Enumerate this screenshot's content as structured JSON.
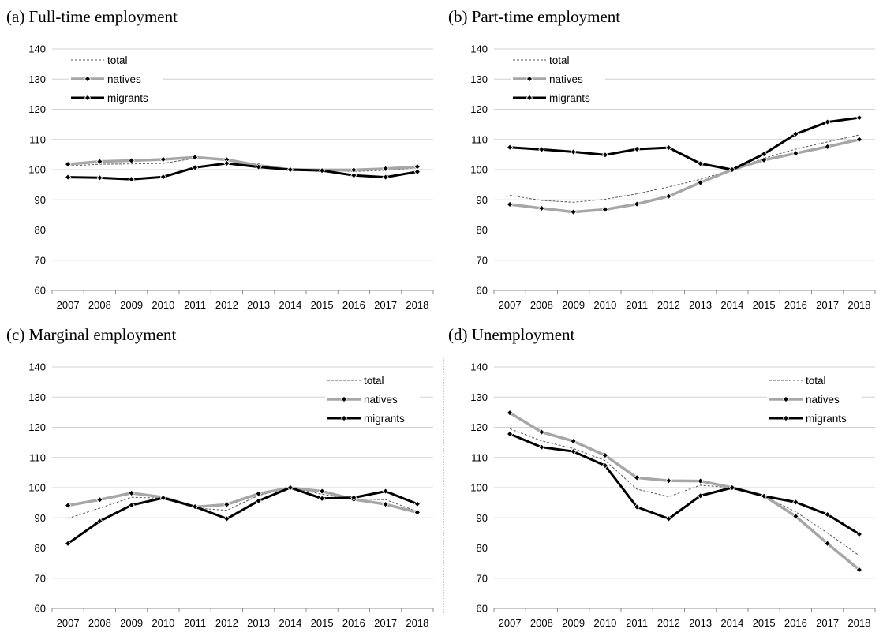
{
  "chart_data": [
    {
      "type": "line",
      "title": "(a)  Full-time employment",
      "x": [
        "2007",
        "2008",
        "2009",
        "2010",
        "2011",
        "2012",
        "2013",
        "2014",
        "2015",
        "2016",
        "2017",
        "2018"
      ],
      "ylim": [
        60,
        140
      ],
      "yticks": [
        60,
        70,
        80,
        90,
        100,
        110,
        120,
        130,
        140
      ],
      "grid": true,
      "legend_position": "top-left",
      "series": [
        {
          "name": "total",
          "style": "dashed",
          "color": "#555555",
          "values": [
            101.2,
            101.8,
            101.9,
            102.1,
            103.8,
            103.0,
            101.3,
            100.0,
            99.8,
            99.4,
            99.8,
            100.6
          ]
        },
        {
          "name": "natives",
          "style": "thick-gray",
          "color": "#a6a6a6",
          "values": [
            101.8,
            102.7,
            103.0,
            103.4,
            104.1,
            103.3,
            101.4,
            100.0,
            99.9,
            99.9,
            100.3,
            101.0
          ]
        },
        {
          "name": "migrants",
          "style": "thick-black",
          "color": "#000000",
          "values": [
            97.5,
            97.3,
            96.8,
            97.6,
            100.7,
            102.1,
            100.9,
            100.0,
            99.7,
            98.1,
            97.5,
            99.3
          ]
        }
      ]
    },
    {
      "type": "line",
      "title": "(b)  Part-time employment",
      "x": [
        "2007",
        "2008",
        "2009",
        "2010",
        "2011",
        "2012",
        "2013",
        "2014",
        "2015",
        "2016",
        "2017",
        "2018"
      ],
      "ylim": [
        60,
        140
      ],
      "yticks": [
        60,
        70,
        80,
        90,
        100,
        110,
        120,
        130,
        140
      ],
      "grid": true,
      "legend_position": "top-left",
      "series": [
        {
          "name": "total",
          "style": "dashed",
          "color": "#555555",
          "values": [
            91.5,
            89.8,
            89.2,
            90.2,
            92.0,
            94.3,
            96.8,
            100.0,
            103.8,
            106.8,
            109.2,
            111.5
          ]
        },
        {
          "name": "natives",
          "style": "thick-gray",
          "color": "#a6a6a6",
          "values": [
            88.5,
            87.2,
            86.0,
            86.8,
            88.6,
            91.2,
            95.7,
            100.0,
            103.2,
            105.4,
            107.6,
            110.0
          ]
        },
        {
          "name": "migrants",
          "style": "thick-black",
          "color": "#000000",
          "values": [
            107.4,
            106.7,
            105.9,
            104.9,
            106.8,
            107.3,
            102.0,
            100.0,
            105.2,
            111.8,
            115.8,
            117.2
          ]
        }
      ]
    },
    {
      "type": "line",
      "title": "(c)  Marginal employment",
      "x": [
        "2007",
        "2008",
        "2009",
        "2010",
        "2011",
        "2012",
        "2013",
        "2014",
        "2015",
        "2016",
        "2017",
        "2018"
      ],
      "ylim": [
        60,
        140
      ],
      "yticks": [
        60,
        70,
        80,
        90,
        100,
        110,
        120,
        130,
        140
      ],
      "grid": true,
      "legend_position": "top-right",
      "series": [
        {
          "name": "total",
          "style": "dashed",
          "color": "#555555",
          "values": [
            89.8,
            93.2,
            96.8,
            96.5,
            93.2,
            92.5,
            97.4,
            100.0,
            97.8,
            96.3,
            96.0,
            92.1
          ]
        },
        {
          "name": "natives",
          "style": "thick-gray",
          "color": "#a6a6a6",
          "values": [
            94.1,
            96.0,
            98.2,
            96.8,
            93.6,
            94.4,
            98.0,
            100.0,
            98.8,
            96.1,
            94.5,
            91.8
          ]
        },
        {
          "name": "migrants",
          "style": "thick-black",
          "color": "#000000",
          "values": [
            81.5,
            88.9,
            94.2,
            96.6,
            93.7,
            89.7,
            95.6,
            100.0,
            96.4,
            96.7,
            98.8,
            94.6
          ]
        }
      ]
    },
    {
      "type": "line",
      "title": "(d)  Unemployment",
      "x": [
        "2007",
        "2008",
        "2009",
        "2010",
        "2011",
        "2012",
        "2013",
        "2014",
        "2015",
        "2016",
        "2017",
        "2018"
      ],
      "ylim": [
        60,
        140
      ],
      "yticks": [
        60,
        70,
        80,
        90,
        100,
        110,
        120,
        130,
        140
      ],
      "grid": true,
      "legend_position": "top-right",
      "series": [
        {
          "name": "total",
          "style": "dashed",
          "color": "#555555",
          "values": [
            119.5,
            115.5,
            113.0,
            109.0,
            99.5,
            97.0,
            100.8,
            100.0,
            97.2,
            92.0,
            85.0,
            77.5
          ]
        },
        {
          "name": "natives",
          "style": "thick-gray",
          "color": "#a6a6a6",
          "values": [
            124.8,
            118.4,
            115.4,
            110.7,
            103.3,
            102.3,
            102.2,
            100.0,
            97.3,
            90.5,
            81.5,
            72.8
          ]
        },
        {
          "name": "migrants",
          "style": "thick-black",
          "color": "#000000",
          "values": [
            117.8,
            113.4,
            112.0,
            107.3,
            93.6,
            89.7,
            97.3,
            100.0,
            97.2,
            95.2,
            91.1,
            84.6
          ]
        }
      ]
    }
  ]
}
